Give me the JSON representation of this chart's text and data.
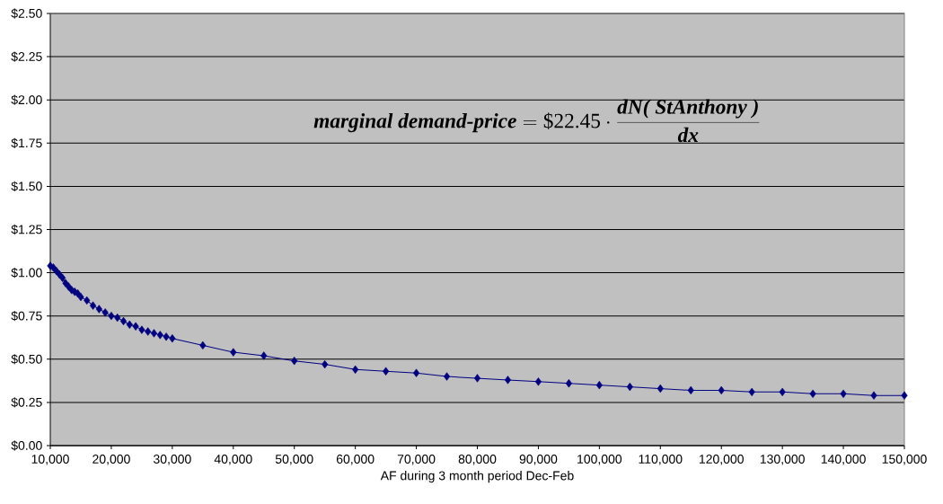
{
  "chart_data": {
    "type": "line",
    "xlabel": "AF during 3 month period Dec-Feb",
    "annotations": [
      "\\textbf{\\textit{marginal demand-price}}=\\mbox{\\$22.45}\\cdot\\frac{\\textbf{\\textit{dN( StAnthony )}}}{\\textbf{\\textit{dx}}}"
    ],
    "x": [
      10000,
      10500,
      11000,
      11500,
      12000,
      12500,
      13000,
      13500,
      14000,
      14500,
      15000,
      16000,
      17000,
      18000,
      19000,
      20000,
      21000,
      22000,
      23000,
      24000,
      25000,
      26000,
      27000,
      28000,
      29000,
      30000,
      35000,
      40000,
      45000,
      50000,
      55000,
      60000,
      65000,
      70000,
      75000,
      80000,
      85000,
      90000,
      95000,
      100000,
      105000,
      110000,
      115000,
      120000,
      125000,
      130000,
      135000,
      140000,
      145000,
      150000
    ],
    "values": [
      1.04,
      1.03,
      1.01,
      0.99,
      0.97,
      0.94,
      0.92,
      0.9,
      0.89,
      0.88,
      0.86,
      0.84,
      0.81,
      0.79,
      0.77,
      0.75,
      0.74,
      0.72,
      0.7,
      0.69,
      0.67,
      0.66,
      0.65,
      0.64,
      0.63,
      0.62,
      0.58,
      0.54,
      0.52,
      0.49,
      0.47,
      0.44,
      0.43,
      0.42,
      0.4,
      0.39,
      0.38,
      0.37,
      0.36,
      0.35,
      0.34,
      0.33,
      0.32,
      0.32,
      0.31,
      0.31,
      0.3,
      0.3,
      0.29,
      0.29
    ],
    "color": "#000080",
    "xlim": [
      10000,
      150000
    ],
    "xticks": [
      {
        "value": 10000,
        "label": "10,000"
      },
      {
        "value": 20000,
        "label": "20,000"
      },
      {
        "value": 30000,
        "label": "30,000"
      },
      {
        "value": 40000,
        "label": "40,000"
      },
      {
        "value": 50000,
        "label": "50,000"
      },
      {
        "value": 60000,
        "label": "60,000"
      },
      {
        "value": 70000,
        "label": "70,000"
      },
      {
        "value": 80000,
        "label": "80,000"
      },
      {
        "value": 90000,
        "label": "90,000"
      },
      {
        "value": 100000,
        "label": "100,000"
      },
      {
        "value": 110000,
        "label": "110,000"
      },
      {
        "value": 120000,
        "label": "120,000"
      },
      {
        "value": 130000,
        "label": "130,000"
      },
      {
        "value": 140000,
        "label": "140,000"
      },
      {
        "value": 150000,
        "label": "150,000"
      }
    ],
    "ylim": [
      0,
      2.5
    ],
    "yticks": [
      {
        "value": 0,
        "label": "$0.00"
      },
      {
        "value": 0.25,
        "label": "$0.25"
      },
      {
        "value": 0.5,
        "label": "$0.50"
      },
      {
        "value": 0.75,
        "label": "$0.75"
      },
      {
        "value": 1.0,
        "label": "$1.00"
      },
      {
        "value": 1.25,
        "label": "$1.25"
      },
      {
        "value": 1.5,
        "label": "$1.50"
      },
      {
        "value": 1.75,
        "label": "$1.75"
      },
      {
        "value": 2.0,
        "label": "$2.00"
      },
      {
        "value": 2.25,
        "label": "$2.25"
      },
      {
        "value": 2.5,
        "label": "$2.50"
      }
    ],
    "grid": "y",
    "marker": "diamond",
    "line_style": "solid"
  }
}
